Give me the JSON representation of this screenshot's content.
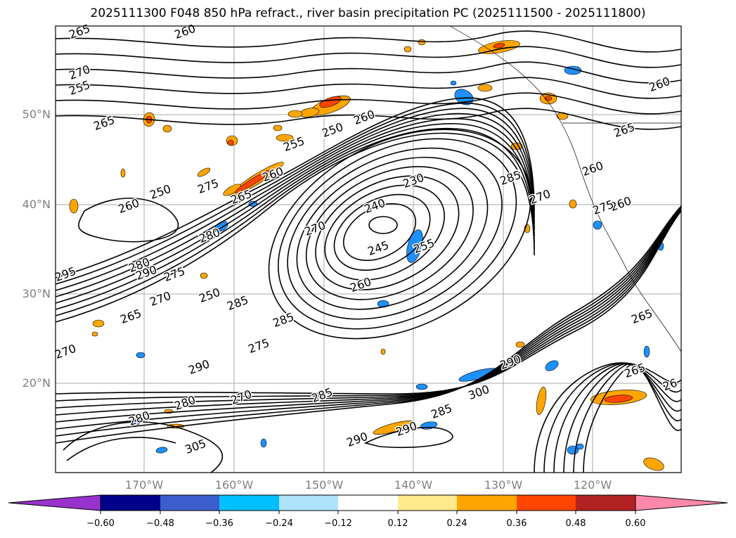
{
  "title": "2025111300 F048 850 hPa refract., river basin precipitation PC (2025111500 - 2025111800)",
  "lat_labels": [
    "50°N",
    "40°N",
    "30°N",
    "20°N"
  ],
  "lon_labels": [
    "170°W",
    "160°W",
    "150°W",
    "140°W",
    "130°W",
    "120°W"
  ],
  "contour_labels": [
    "265",
    "260",
    "270",
    "260",
    "265",
    "255",
    "250",
    "260",
    "255",
    "250",
    "260",
    "275",
    "265",
    "260",
    "250",
    "270",
    "240",
    "245",
    "255",
    "260",
    "230",
    "285",
    "280",
    "290",
    "270",
    "275",
    "265",
    "270",
    "295",
    "280",
    "285",
    "285",
    "275",
    "290",
    "270",
    "285",
    "280",
    "290",
    "300",
    "305",
    "280",
    "290",
    "290",
    "285",
    "265",
    "260",
    "270",
    "265",
    "260",
    "265",
    "26",
    "275"
  ],
  "colorbar": {
    "ticks": [
      "−0.60",
      "−0.48",
      "−0.36",
      "−0.24",
      "−0.12",
      "0.12",
      "0.24",
      "0.36",
      "0.48",
      "0.60"
    ],
    "colors": [
      "#9932cc",
      "#00008b",
      "#3a5fcd",
      "#00bfff",
      "#aee2fa",
      "#ffffff",
      "#ffe98a",
      "#ffa500",
      "#ff4500",
      "#b22222",
      "#ff88aa"
    ]
  },
  "colors": {
    "blue_precip": "#1e90ff",
    "orange_precip": "#ffa500",
    "red_precip": "#ff4500",
    "contour": "#000000",
    "grid": "#a9a9a9"
  }
}
